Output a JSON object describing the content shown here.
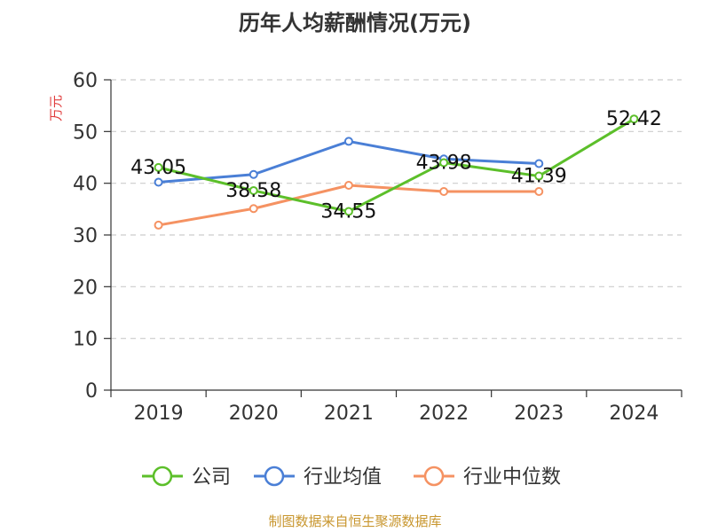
{
  "title": "历年人均薪酬情况(万元)",
  "source": "制图数据来自恒生聚源数据库",
  "chart_data": {
    "type": "line",
    "title": "历年人均薪酬情况(万元)",
    "ylabel": "万元",
    "xlabel": "",
    "categories": [
      "2019",
      "2020",
      "2021",
      "2022",
      "2023",
      "2024"
    ],
    "ylim": [
      0,
      60
    ],
    "yticks": [
      0,
      10,
      20,
      30,
      40,
      50,
      60
    ],
    "grid": true,
    "legend_position": "bottom",
    "series": [
      {
        "name": "公司",
        "color": "#5cbf2a",
        "values": [
          43.05,
          38.58,
          34.55,
          43.98,
          41.39,
          52.42
        ],
        "labels": [
          "43.05",
          "38.58",
          "34.55",
          "43.98",
          "41.39",
          "52.42"
        ]
      },
      {
        "name": "行业均值",
        "color": "#4a7fd6",
        "values": [
          40.2,
          41.7,
          48.1,
          44.7,
          43.8,
          null
        ]
      },
      {
        "name": "行业中位数",
        "color": "#f59262",
        "values": [
          31.9,
          35.1,
          39.6,
          38.4,
          38.4,
          null
        ]
      }
    ]
  }
}
